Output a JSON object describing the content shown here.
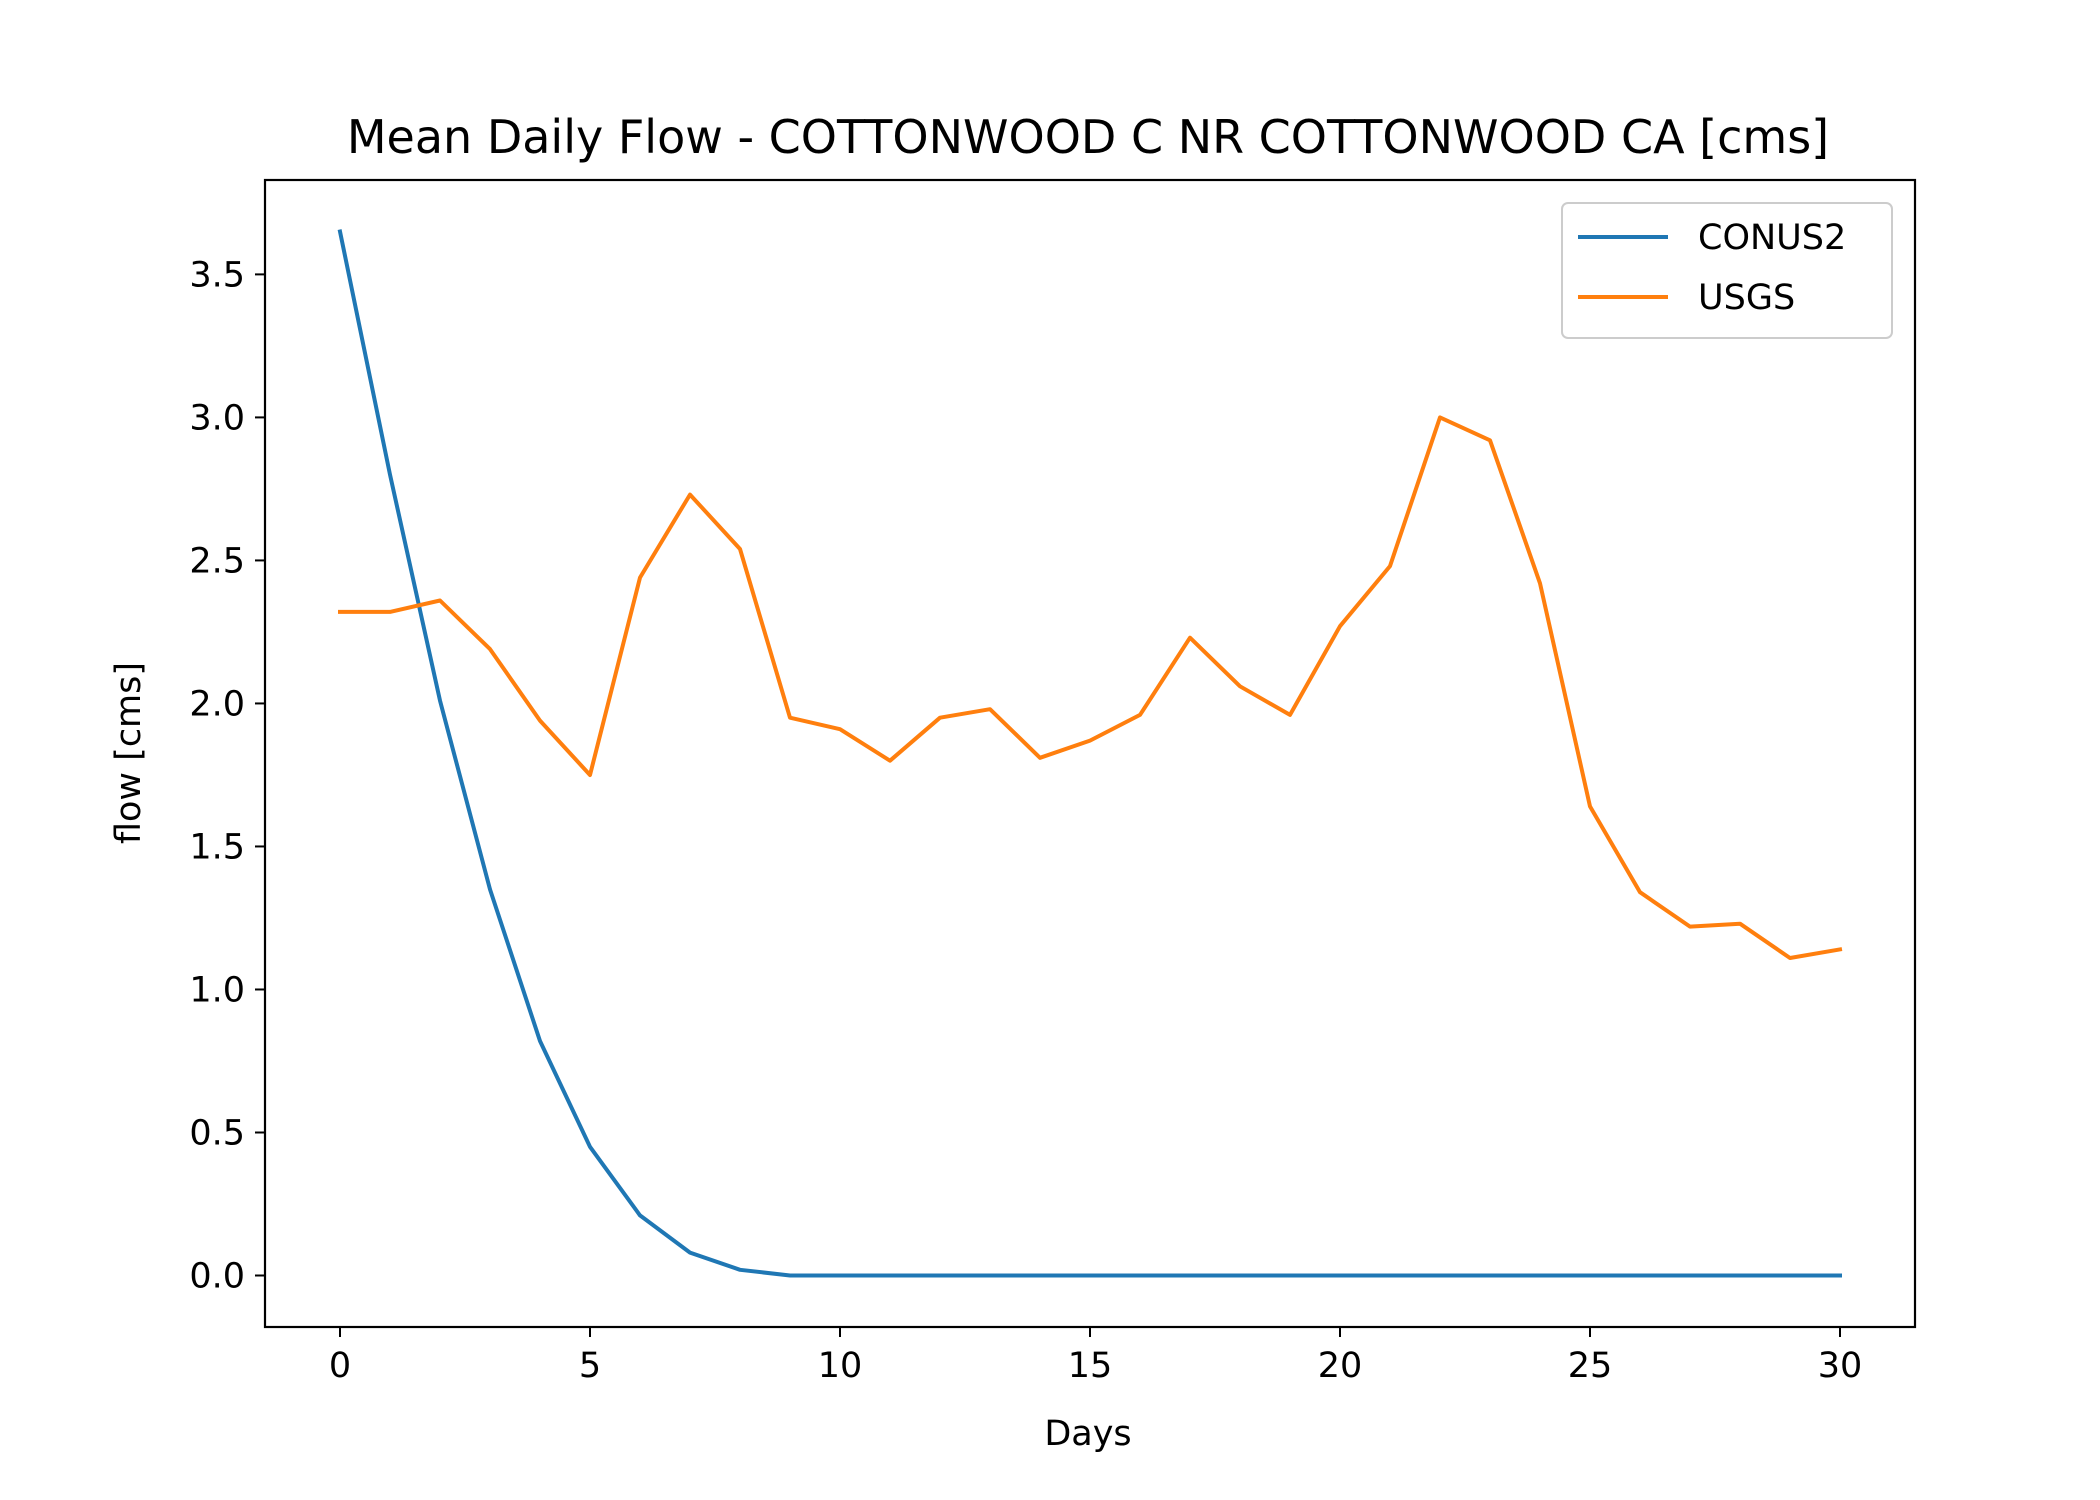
{
  "chart_data": {
    "type": "line",
    "title": "Mean Daily Flow - COTTONWOOD C NR COTTONWOOD CA [cms]",
    "xlabel": "Days",
    "ylabel": "flow [cms]",
    "xlim": [
      -1.5,
      31.5
    ],
    "ylim": [
      -0.18,
      3.83
    ],
    "xticks": [
      0,
      5,
      10,
      15,
      20,
      25,
      30
    ],
    "xtick_labels": [
      "0",
      "5",
      "10",
      "15",
      "20",
      "25",
      "30"
    ],
    "yticks": [
      0.0,
      0.5,
      1.0,
      1.5,
      2.0,
      2.5,
      3.0,
      3.5
    ],
    "ytick_labels": [
      "0.0",
      "0.5",
      "1.0",
      "1.5",
      "2.0",
      "2.5",
      "3.0",
      "3.5"
    ],
    "grid": false,
    "legend_position": "top-right",
    "x": [
      0,
      1,
      2,
      3,
      4,
      5,
      6,
      7,
      8,
      9,
      10,
      11,
      12,
      13,
      14,
      15,
      16,
      17,
      18,
      19,
      20,
      21,
      22,
      23,
      24,
      25,
      26,
      27,
      28,
      29,
      30
    ],
    "series": [
      {
        "name": "CONUS2",
        "color": "#1f77b4",
        "values": [
          3.65,
          2.8,
          2.01,
          1.35,
          0.82,
          0.45,
          0.21,
          0.08,
          0.02,
          0.0,
          0.0,
          0.0,
          0.0,
          0.0,
          0.0,
          0.0,
          0.0,
          0.0,
          0.0,
          0.0,
          0.0,
          0.0,
          0.0,
          0.0,
          0.0,
          0.0,
          0.0,
          0.0,
          0.0,
          0.0,
          0.0
        ]
      },
      {
        "name": "USGS",
        "color": "#ff7f0e",
        "values": [
          2.32,
          2.32,
          2.36,
          2.19,
          1.94,
          1.75,
          2.44,
          2.73,
          2.54,
          1.95,
          1.91,
          1.8,
          1.95,
          1.98,
          1.81,
          1.87,
          1.96,
          2.23,
          2.06,
          1.96,
          2.27,
          2.48,
          3.0,
          2.92,
          2.42,
          1.64,
          1.34,
          1.22,
          1.23,
          1.11,
          1.14
        ]
      }
    ]
  }
}
